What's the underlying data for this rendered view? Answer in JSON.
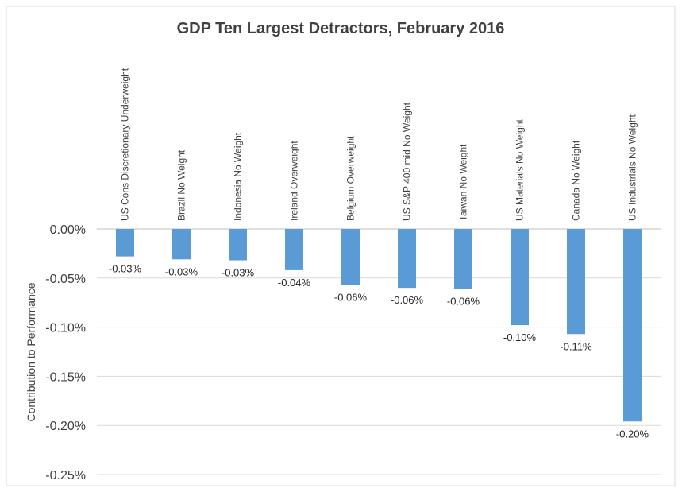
{
  "chart_data": {
    "type": "bar",
    "title": "GDP Ten Largest Detractors, February 2016",
    "xlabel": "",
    "ylabel": "Contribution to Performance",
    "ylim": [
      -0.25,
      0.0
    ],
    "yticks": [
      "0.00%",
      "-0.05%",
      "-0.10%",
      "-0.15%",
      "-0.20%",
      "-0.25%"
    ],
    "ytick_values": [
      0.0,
      -0.05,
      -0.1,
      -0.15,
      -0.2,
      -0.25
    ],
    "grid": true,
    "legend": "none",
    "bar_color": "#5b9bd5",
    "categories": [
      "US Cons Discretionary Underweight",
      "Brazil No Weight",
      "Indonesia No Weight",
      "Ireland Overweight",
      "Belgium Overweight",
      "US S&P 400 mid No Weight",
      "Taiwan No Weight",
      "US Materials No Weight",
      "Canada No Weight",
      "US Industrials No Weight"
    ],
    "values": [
      -0.028,
      -0.031,
      -0.032,
      -0.042,
      -0.057,
      -0.06,
      -0.061,
      -0.098,
      -0.107,
      -0.196
    ],
    "data_labels": [
      "-0.03%",
      "-0.03%",
      "-0.03%",
      "-0.04%",
      "-0.06%",
      "-0.06%",
      "-0.06%",
      "-0.10%",
      "-0.11%",
      "-0.20%"
    ]
  }
}
